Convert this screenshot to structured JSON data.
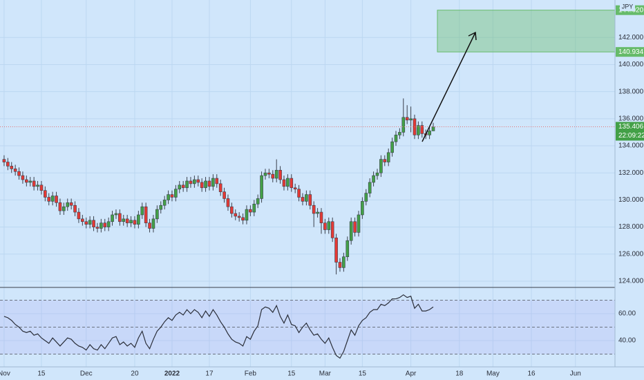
{
  "chart_data": [
    {
      "type": "candlestick",
      "currency": "JPY",
      "up_color": "#43a047",
      "down_color": "#e53935",
      "xlim": [
        -1.1,
        163.7
      ],
      "xticks": [
        {
          "value": 0,
          "label": "Nov"
        },
        {
          "value": 10,
          "label": "15"
        },
        {
          "value": 22,
          "label": "Dec"
        },
        {
          "value": 35,
          "label": "20"
        },
        {
          "value": 45,
          "label": "2022"
        },
        {
          "value": 55,
          "label": "17"
        },
        {
          "value": 66,
          "label": "Feb"
        },
        {
          "value": 77,
          "label": "15"
        },
        {
          "value": 86,
          "label": "Mar"
        },
        {
          "value": 96,
          "label": "15"
        },
        {
          "value": 109,
          "label": "Apr"
        },
        {
          "value": 122,
          "label": "18"
        },
        {
          "value": 131,
          "label": "May"
        },
        {
          "value": 141.3,
          "label": "16"
        },
        {
          "value": 153.1,
          "label": "Jun"
        }
      ],
      "ylim": [
        123.59,
        144.77
      ],
      "yticks": [
        {
          "value": 124,
          "label": "124.000"
        },
        {
          "value": 126,
          "label": "126.000"
        },
        {
          "value": 128,
          "label": "128.000"
        },
        {
          "value": 130,
          "label": "130.000"
        },
        {
          "value": 132,
          "label": "132.000"
        },
        {
          "value": 134,
          "label": "134.000"
        },
        {
          "value": 136,
          "label": "136.000"
        },
        {
          "value": 138,
          "label": "138.000"
        },
        {
          "value": 140,
          "label": "140.000"
        },
        {
          "value": 142,
          "label": "142.000"
        }
      ],
      "grid": true,
      "open": [
        133.0,
        132.8,
        132.5,
        132.3,
        132.1,
        131.8,
        131.5,
        131.3,
        131.4,
        131.0,
        131.1,
        130.7,
        130.2,
        129.9,
        130.3,
        129.8,
        129.2,
        129.5,
        129.8,
        129.6,
        129.1,
        128.6,
        128.4,
        128.2,
        128.5,
        128.0,
        127.9,
        128.3,
        128.0,
        128.4,
        128.9,
        129.0,
        128.4,
        128.6,
        128.3,
        128.5,
        128.2,
        128.9,
        129.5,
        128.3,
        127.9,
        128.6,
        129.3,
        129.6,
        130.0,
        130.4,
        130.2,
        130.8,
        131.1,
        130.9,
        131.4,
        131.2,
        131.5,
        131.3,
        130.9,
        131.4,
        131.0,
        131.6,
        131.2,
        130.6,
        130.1,
        129.5,
        129.0,
        128.8,
        128.7,
        128.5,
        129.3,
        129.1,
        129.7,
        130.1,
        131.8,
        132.0,
        131.9,
        131.6,
        132.2,
        131.5,
        131.0,
        131.6,
        130.9,
        130.8,
        130.2,
        129.9,
        130.4,
        129.6,
        129.0,
        129.1,
        128.3,
        127.8,
        128.4,
        127.2,
        125.4,
        125.0,
        125.8,
        127.0,
        128.4,
        127.6,
        128.9,
        129.9,
        130.5,
        131.3,
        131.8,
        132.0,
        133.0,
        132.8,
        133.5,
        134.3,
        134.8,
        135.0,
        136.1,
        135.9,
        136.0,
        134.8,
        135.5,
        134.9,
        134.8,
        135.1
      ],
      "high": [
        133.3,
        133.1,
        132.8,
        132.6,
        132.4,
        132.1,
        131.8,
        131.7,
        131.7,
        131.4,
        131.4,
        131.0,
        130.5,
        130.6,
        130.6,
        130.1,
        129.8,
        130.1,
        130.1,
        129.9,
        129.4,
        128.9,
        128.7,
        128.8,
        128.8,
        128.3,
        128.6,
        128.6,
        128.7,
        129.2,
        129.3,
        129.3,
        128.9,
        128.9,
        128.8,
        128.8,
        129.2,
        129.8,
        129.8,
        128.6,
        128.9,
        129.6,
        129.9,
        130.3,
        130.7,
        130.7,
        131.1,
        131.4,
        131.4,
        131.7,
        131.7,
        131.8,
        131.8,
        131.6,
        131.7,
        131.7,
        131.9,
        131.9,
        131.5,
        130.9,
        130.4,
        129.8,
        129.3,
        129.1,
        129.0,
        129.6,
        129.6,
        130.0,
        130.4,
        132.1,
        132.3,
        132.3,
        132.2,
        133.0,
        132.5,
        131.8,
        131.9,
        131.9,
        131.2,
        131.1,
        130.5,
        130.7,
        130.7,
        129.9,
        129.4,
        129.4,
        128.6,
        128.7,
        128.7,
        127.5,
        125.7,
        126.1,
        127.3,
        128.7,
        128.7,
        129.2,
        130.2,
        130.8,
        131.6,
        132.1,
        132.3,
        133.3,
        133.3,
        133.8,
        134.6,
        135.1,
        135.3,
        137.5,
        137.0,
        136.9,
        136.3,
        135.8,
        135.8,
        135.2,
        135.4,
        135.7
      ],
      "low": [
        132.5,
        132.2,
        132.0,
        131.8,
        131.5,
        131.2,
        131.0,
        131.0,
        130.7,
        130.7,
        130.4,
        129.9,
        129.6,
        129.6,
        129.5,
        128.9,
        128.9,
        129.2,
        129.3,
        128.8,
        128.3,
        128.1,
        127.9,
        127.9,
        127.7,
        127.6,
        127.6,
        127.7,
        127.7,
        128.1,
        128.6,
        128.1,
        128.1,
        128.0,
        128.0,
        127.9,
        127.9,
        128.6,
        128.0,
        127.6,
        127.6,
        128.3,
        129.0,
        129.3,
        129.7,
        129.9,
        129.9,
        130.5,
        130.6,
        130.6,
        130.9,
        130.9,
        131.0,
        130.6,
        130.6,
        130.7,
        130.7,
        130.9,
        130.3,
        129.8,
        129.2,
        128.7,
        128.5,
        128.4,
        128.2,
        128.2,
        128.8,
        128.8,
        129.4,
        129.8,
        131.5,
        131.6,
        131.3,
        131.3,
        131.2,
        130.7,
        130.7,
        130.6,
        130.5,
        129.9,
        129.6,
        129.6,
        129.3,
        128.0,
        128.7,
        127.5,
        127.5,
        127.5,
        126.9,
        124.5,
        124.7,
        124.7,
        125.5,
        126.7,
        127.3,
        127.3,
        128.6,
        129.6,
        130.2,
        131.0,
        131.5,
        131.7,
        132.5,
        132.5,
        133.2,
        134.0,
        134.5,
        134.7,
        135.6,
        135.0,
        134.5,
        134.5,
        134.6,
        134.5,
        134.5,
        135.1
      ],
      "close": [
        132.8,
        132.5,
        132.3,
        132.1,
        131.8,
        131.5,
        131.3,
        131.4,
        131.0,
        131.1,
        130.7,
        130.2,
        129.9,
        130.3,
        129.8,
        129.2,
        129.5,
        129.8,
        129.6,
        129.1,
        128.6,
        128.4,
        128.2,
        128.5,
        128.0,
        127.9,
        128.3,
        128.0,
        128.4,
        128.9,
        129.0,
        128.4,
        128.6,
        128.3,
        128.5,
        128.2,
        128.9,
        129.5,
        128.3,
        127.9,
        128.6,
        129.3,
        129.6,
        130.0,
        130.4,
        130.2,
        130.8,
        131.1,
        130.9,
        131.4,
        131.2,
        131.5,
        131.3,
        130.9,
        131.4,
        131.0,
        131.6,
        131.2,
        130.6,
        130.1,
        129.5,
        129.0,
        128.8,
        128.7,
        128.5,
        129.3,
        129.1,
        129.7,
        130.1,
        131.8,
        132.0,
        131.9,
        131.6,
        132.2,
        131.5,
        131.0,
        131.6,
        130.9,
        130.8,
        130.2,
        129.9,
        130.4,
        129.6,
        129.0,
        129.1,
        128.3,
        127.8,
        128.4,
        127.2,
        125.4,
        125.0,
        125.8,
        127.0,
        128.4,
        127.6,
        128.9,
        129.9,
        130.5,
        131.3,
        131.8,
        132.0,
        133.0,
        132.8,
        133.5,
        134.3,
        134.8,
        135.0,
        136.1,
        135.9,
        136.0,
        134.8,
        135.5,
        134.9,
        134.8,
        135.1,
        135.4
      ],
      "last_price": 135.406,
      "countdown": "22:09:22",
      "target_zone": {
        "upper": {
          "value": 144.02,
          "label": "144.020"
        },
        "lower": 140.934,
        "color": "#66bb6a"
      }
    },
    {
      "type": "line",
      "ylim": [
        21.03,
        78.46
      ],
      "yticks": [
        {
          "value": 40,
          "label": "40.00"
        },
        {
          "value": 60,
          "label": "60.00"
        }
      ],
      "levels": [
        70,
        50,
        30
      ],
      "series": [
        {
          "color": "#2a2e39",
          "values": [
            58,
            57,
            55,
            52,
            50,
            47,
            46,
            47,
            44,
            45,
            42,
            40,
            38,
            42,
            39,
            36,
            39,
            42,
            41,
            38,
            36,
            35,
            33,
            37,
            34,
            33,
            37,
            34,
            38,
            42,
            43,
            37,
            39,
            36,
            38,
            35,
            42,
            47,
            38,
            34,
            41,
            47,
            50,
            54,
            57,
            55,
            59,
            61,
            59,
            63,
            60,
            63,
            61,
            57,
            62,
            58,
            63,
            59,
            54,
            50,
            45,
            41,
            39,
            38,
            36,
            43,
            41,
            47,
            51,
            63,
            65,
            64,
            61,
            66,
            58,
            53,
            59,
            52,
            51,
            46,
            50,
            53,
            48,
            44,
            45,
            41,
            38,
            42,
            35,
            29,
            27,
            32,
            40,
            48,
            44,
            51,
            55,
            57,
            61,
            63,
            63,
            67,
            66,
            68,
            71,
            71,
            72,
            74,
            72,
            73,
            64,
            67,
            62,
            62,
            63,
            65
          ]
        }
      ]
    }
  ]
}
